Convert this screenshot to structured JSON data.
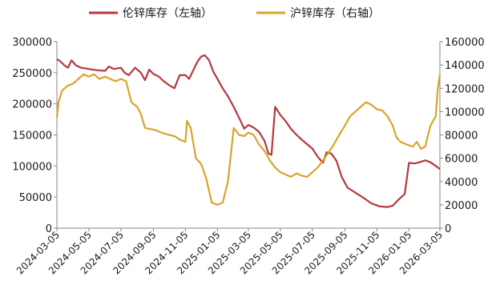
{
  "chart_data": {
    "type": "line",
    "title": "",
    "legend_position": "top-center",
    "grid": false,
    "x_ticks": [
      "2024-03-05",
      "2024-05-05",
      "2024-07-05",
      "2024-09-05",
      "2024-11-05",
      "2025-01-05",
      "2025-03-05",
      "2025-05-05",
      "2025-07-05",
      "2025-09-05",
      "2025-11-05",
      "2026-01-05",
      "2026-03-05"
    ],
    "x_range": [
      "2024-03-05",
      "2026-03-05"
    ],
    "y_left": {
      "range": [
        0,
        300000
      ],
      "ticks": [
        "0",
        "50000",
        "100000",
        "150000",
        "200000",
        "250000",
        "300000"
      ]
    },
    "y_right": {
      "range": [
        0,
        160000
      ],
      "ticks": [
        "0",
        "20000",
        "40000",
        "60000",
        "80000",
        "100000",
        "120000",
        "140000",
        "160000"
      ]
    },
    "series": [
      {
        "name": "伦锌库存（左轴）",
        "axis": "left",
        "color": "#b5393e",
        "points": [
          [
            "2024-03-05",
            272000
          ],
          [
            "2024-03-12",
            268000
          ],
          [
            "2024-03-19",
            262000
          ],
          [
            "2024-03-26",
            258000
          ],
          [
            "2024-04-02",
            270000
          ],
          [
            "2024-04-10",
            262000
          ],
          [
            "2024-04-20",
            258000
          ],
          [
            "2024-05-05",
            256000
          ],
          [
            "2024-05-20",
            254000
          ],
          [
            "2024-06-05",
            253000
          ],
          [
            "2024-06-12",
            260000
          ],
          [
            "2024-06-22",
            256000
          ],
          [
            "2024-07-05",
            258000
          ],
          [
            "2024-07-12",
            250000
          ],
          [
            "2024-07-20",
            246000
          ],
          [
            "2024-08-01",
            258000
          ],
          [
            "2024-08-12",
            250000
          ],
          [
            "2024-08-20",
            238000
          ],
          [
            "2024-08-28",
            255000
          ],
          [
            "2024-09-05",
            248000
          ],
          [
            "2024-09-15",
            244000
          ],
          [
            "2024-09-25",
            236000
          ],
          [
            "2024-10-05",
            230000
          ],
          [
            "2024-10-15",
            225000
          ],
          [
            "2024-10-25",
            246000
          ],
          [
            "2024-11-05",
            246000
          ],
          [
            "2024-11-12",
            240000
          ],
          [
            "2024-11-20",
            254000
          ],
          [
            "2024-11-28",
            268000
          ],
          [
            "2024-12-05",
            276000
          ],
          [
            "2024-12-12",
            278000
          ],
          [
            "2024-12-20",
            270000
          ],
          [
            "2024-12-28",
            252000
          ],
          [
            "2025-01-05",
            240000
          ],
          [
            "2025-01-15",
            225000
          ],
          [
            "2025-01-25",
            212000
          ],
          [
            "2025-02-05",
            195000
          ],
          [
            "2025-02-15",
            178000
          ],
          [
            "2025-02-25",
            160000
          ],
          [
            "2025-03-05",
            166000
          ],
          [
            "2025-03-15",
            162000
          ],
          [
            "2025-03-25",
            155000
          ],
          [
            "2025-04-05",
            140000
          ],
          [
            "2025-04-12",
            120000
          ],
          [
            "2025-04-18",
            118000
          ],
          [
            "2025-04-25",
            195000
          ],
          [
            "2025-05-05",
            182000
          ],
          [
            "2025-05-15",
            172000
          ],
          [
            "2025-05-25",
            160000
          ],
          [
            "2025-06-05",
            150000
          ],
          [
            "2025-06-15",
            142000
          ],
          [
            "2025-06-25",
            135000
          ],
          [
            "2025-07-05",
            128000
          ],
          [
            "2025-07-15",
            115000
          ],
          [
            "2025-07-25",
            105000
          ],
          [
            "2025-08-01",
            122000
          ],
          [
            "2025-08-10",
            120000
          ],
          [
            "2025-08-20",
            108000
          ],
          [
            "2025-08-30",
            82000
          ],
          [
            "2025-09-10",
            65000
          ],
          [
            "2025-09-25",
            57000
          ],
          [
            "2025-10-10",
            49000
          ],
          [
            "2025-10-25",
            40000
          ],
          [
            "2025-11-10",
            35000
          ],
          [
            "2025-11-25",
            34000
          ],
          [
            "2025-12-05",
            36000
          ],
          [
            "2025-12-15",
            45000
          ],
          [
            "2025-12-28",
            55000
          ],
          [
            "2026-01-05",
            105000
          ],
          [
            "2026-01-15",
            104000
          ],
          [
            "2026-01-25",
            106000
          ],
          [
            "2026-02-05",
            109000
          ],
          [
            "2026-02-15",
            106000
          ],
          [
            "2026-02-25",
            100000
          ],
          [
            "2026-03-05",
            95000
          ]
        ]
      },
      {
        "name": "沪锌库存（右轴）",
        "axis": "right",
        "color": "#d8a42b",
        "points": [
          [
            "2024-03-05",
            95000
          ],
          [
            "2024-03-08",
            108000
          ],
          [
            "2024-03-15",
            118000
          ],
          [
            "2024-03-25",
            122000
          ],
          [
            "2024-04-05",
            124000
          ],
          [
            "2024-04-15",
            128000
          ],
          [
            "2024-04-25",
            132000
          ],
          [
            "2024-05-05",
            130000
          ],
          [
            "2024-05-15",
            132000
          ],
          [
            "2024-05-25",
            128000
          ],
          [
            "2024-06-05",
            130000
          ],
          [
            "2024-06-15",
            128000
          ],
          [
            "2024-06-25",
            126000
          ],
          [
            "2024-07-05",
            128000
          ],
          [
            "2024-07-15",
            126000
          ],
          [
            "2024-07-25",
            108000
          ],
          [
            "2024-08-05",
            104000
          ],
          [
            "2024-08-12",
            98000
          ],
          [
            "2024-08-20",
            86000
          ],
          [
            "2024-08-30",
            85000
          ],
          [
            "2024-09-10",
            84000
          ],
          [
            "2024-09-20",
            82000
          ],
          [
            "2024-10-05",
            80000
          ],
          [
            "2024-10-15",
            79000
          ],
          [
            "2024-10-25",
            76000
          ],
          [
            "2024-11-05",
            74000
          ],
          [
            "2024-11-08",
            92000
          ],
          [
            "2024-11-15",
            86000
          ],
          [
            "2024-11-25",
            60000
          ],
          [
            "2024-12-05",
            55000
          ],
          [
            "2024-12-15",
            42000
          ],
          [
            "2024-12-25",
            22000
          ],
          [
            "2025-01-05",
            20000
          ],
          [
            "2025-01-15",
            22000
          ],
          [
            "2025-01-25",
            40000
          ],
          [
            "2025-02-05",
            86000
          ],
          [
            "2025-02-15",
            80000
          ],
          [
            "2025-02-25",
            79000
          ],
          [
            "2025-03-05",
            82000
          ],
          [
            "2025-03-15",
            80000
          ],
          [
            "2025-03-25",
            72000
          ],
          [
            "2025-04-05",
            66000
          ],
          [
            "2025-04-15",
            58000
          ],
          [
            "2025-04-25",
            52000
          ],
          [
            "2025-05-05",
            48000
          ],
          [
            "2025-05-15",
            46000
          ],
          [
            "2025-05-25",
            44000
          ],
          [
            "2025-06-05",
            47000
          ],
          [
            "2025-06-15",
            45000
          ],
          [
            "2025-06-25",
            44000
          ],
          [
            "2025-07-05",
            48000
          ],
          [
            "2025-07-15",
            52000
          ],
          [
            "2025-07-25",
            58000
          ],
          [
            "2025-08-05",
            65000
          ],
          [
            "2025-08-15",
            72000
          ],
          [
            "2025-08-25",
            80000
          ],
          [
            "2025-09-05",
            88000
          ],
          [
            "2025-09-15",
            96000
          ],
          [
            "2025-09-25",
            100000
          ],
          [
            "2025-10-05",
            104000
          ],
          [
            "2025-10-15",
            108000
          ],
          [
            "2025-10-25",
            106000
          ],
          [
            "2025-11-05",
            102000
          ],
          [
            "2025-11-15",
            101000
          ],
          [
            "2025-11-25",
            96000
          ],
          [
            "2025-12-05",
            88000
          ],
          [
            "2025-12-12",
            78000
          ],
          [
            "2025-12-20",
            74000
          ],
          [
            "2026-01-05",
            71000
          ],
          [
            "2026-01-12",
            70000
          ],
          [
            "2026-01-20",
            74000
          ],
          [
            "2026-01-28",
            68000
          ],
          [
            "2026-02-05",
            70000
          ],
          [
            "2026-02-15",
            88000
          ],
          [
            "2026-02-25",
            96000
          ],
          [
            "2026-03-01",
            120000
          ],
          [
            "2026-03-05",
            132000
          ]
        ]
      }
    ]
  }
}
